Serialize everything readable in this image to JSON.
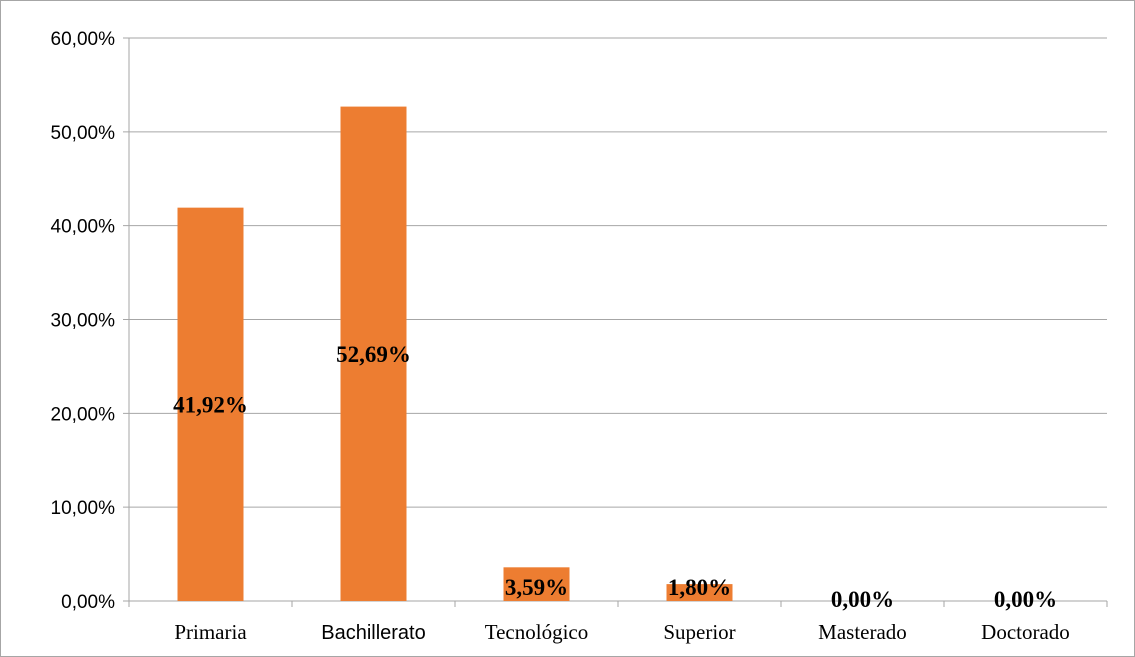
{
  "chart_data": {
    "type": "bar",
    "categories": [
      "Primaria",
      "Bachillerato",
      "Tecnológico",
      "Superior",
      "Masterado",
      "Doctorado"
    ],
    "values": [
      41.92,
      52.69,
      3.59,
      1.8,
      0.0,
      0.0
    ],
    "data_labels": [
      "41,92%",
      "52,69%",
      "3,59%",
      "1,80%",
      "0,00%",
      "0,00%"
    ],
    "y_tick_labels": [
      "0,00%",
      "10,00%",
      "20,00%",
      "30,00%",
      "40,00%",
      "50,00%",
      "60,00%"
    ],
    "y_ticks": [
      0,
      10,
      20,
      30,
      40,
      50,
      60
    ],
    "ylim": [
      0,
      60
    ],
    "grid": true,
    "legend": "none",
    "bar_color": "#ED7D31",
    "gridline_color": "#a6a6a6"
  }
}
